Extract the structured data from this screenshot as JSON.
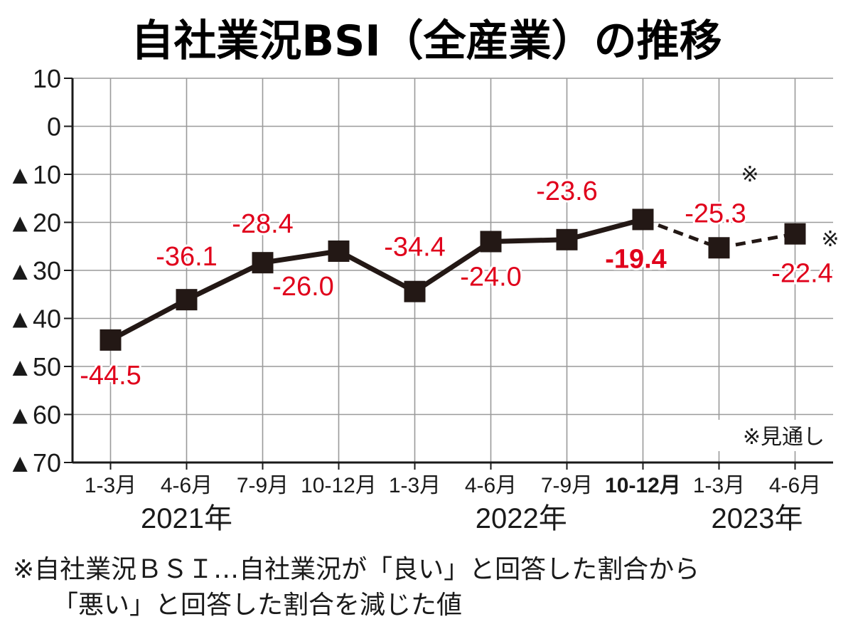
{
  "chart_data": {
    "type": "line",
    "title": "自社業況BSI（全産業）の推移",
    "categories": [
      "1-3月",
      "4-6月",
      "7-9月",
      "10-12月",
      "1-3月",
      "4-6月",
      "7-9月",
      "10-12月",
      "1-3月",
      "4-6月"
    ],
    "years": [
      {
        "label": "2021年",
        "start": 0,
        "end": 3
      },
      {
        "label": "2022年",
        "start": 4,
        "end": 7
      },
      {
        "label": "2023年",
        "start": 8,
        "end": 9
      }
    ],
    "series": [
      {
        "values": [
          -44.5,
          -36.1,
          -28.4,
          -26.0,
          -34.4,
          -24.0,
          -23.6,
          -19.4,
          -25.3,
          -22.4
        ],
        "labels": [
          "-44.5",
          "-36.1",
          "-28.4",
          "-26.0",
          "-34.4",
          "-24.0",
          "-23.6",
          "-19.4",
          "-25.3",
          "-22.4"
        ],
        "forecast_from_index": 7,
        "highlight_index": 7,
        "color": "#231815",
        "label_color": "#e0001b"
      }
    ],
    "ylim": [
      -70,
      10
    ],
    "yticks": [
      10,
      0,
      -10,
      -20,
      -30,
      -40,
      -50,
      -60,
      -70
    ],
    "ytick_labels": [
      "10",
      "0",
      "▲10",
      "▲20",
      "▲30",
      "▲40",
      "▲50",
      "▲60",
      "▲70"
    ],
    "grid": true,
    "forecast_marks": [
      "※",
      "※"
    ],
    "legend_note": "※見通し",
    "footnote": [
      "※自社業況ＢＳＩ…自社業況が「良い」と回答した割合から",
      "「悪い」と回答した割合を減じた値"
    ]
  }
}
